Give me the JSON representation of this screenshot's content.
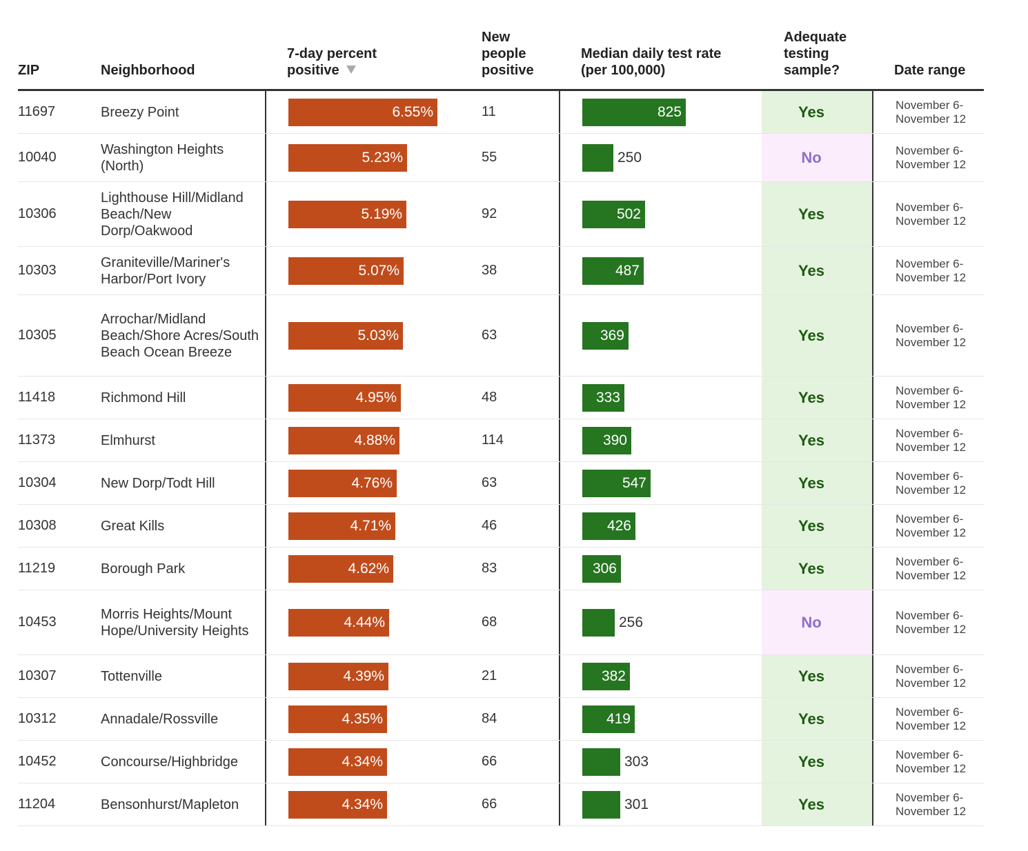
{
  "headers": {
    "zip": "ZIP",
    "neighborhood": "Neighborhood",
    "percent_positive": "7-day percent positive",
    "new_people_positive": "New people positive",
    "test_rate": "Median daily test rate (per 100,000)",
    "adequate_sample": "Adequate testing sample?",
    "date_range": "Date range"
  },
  "icons": {
    "sort": "sort-descending-icon"
  },
  "colors": {
    "percent_bar": "#c04c1c",
    "rate_bar": "#267521",
    "yes_bg": "#e4f3de",
    "yes_text": "#1e5a12",
    "no_bg": "#fcedfd",
    "no_text": "#8f6fc4"
  },
  "rows": [
    {
      "zip": "11697",
      "neighborhood": "Breezy Point",
      "percent": 6.55,
      "percent_label": "6.55%",
      "new_positive": "11",
      "rate": 825,
      "rate_label": "825",
      "adequate": "Yes",
      "date_start": "November 6-",
      "date_end": "November 12"
    },
    {
      "zip": "10040",
      "neighborhood": "Washington Heights (North)",
      "percent": 5.23,
      "percent_label": "5.23%",
      "new_positive": "55",
      "rate": 250,
      "rate_label": "250",
      "adequate": "No",
      "date_start": "November 6-",
      "date_end": "November 12"
    },
    {
      "zip": "10306",
      "neighborhood": "Lighthouse Hill/Midland Beach/New Dorp/Oakwood",
      "percent": 5.19,
      "percent_label": "5.19%",
      "new_positive": "92",
      "rate": 502,
      "rate_label": "502",
      "adequate": "Yes",
      "date_start": "November 6-",
      "date_end": "November 12"
    },
    {
      "zip": "10303",
      "neighborhood": "Graniteville/Mariner's Harbor/Port Ivory",
      "percent": 5.07,
      "percent_label": "5.07%",
      "new_positive": "38",
      "rate": 487,
      "rate_label": "487",
      "adequate": "Yes",
      "date_start": "November 6-",
      "date_end": "November 12"
    },
    {
      "zip": "10305",
      "neighborhood": "Arrochar/Midland Beach/Shore Acres/South Beach Ocean Breeze",
      "percent": 5.03,
      "percent_label": "5.03%",
      "new_positive": "63",
      "rate": 369,
      "rate_label": "369",
      "adequate": "Yes",
      "date_start": "November 6-",
      "date_end": "November 12"
    },
    {
      "zip": "11418",
      "neighborhood": "Richmond Hill",
      "percent": 4.95,
      "percent_label": "4.95%",
      "new_positive": "48",
      "rate": 333,
      "rate_label": "333",
      "adequate": "Yes",
      "date_start": "November 6-",
      "date_end": "November 12"
    },
    {
      "zip": "11373",
      "neighborhood": "Elmhurst",
      "percent": 4.88,
      "percent_label": "4.88%",
      "new_positive": "114",
      "rate": 390,
      "rate_label": "390",
      "adequate": "Yes",
      "date_start": "November 6-",
      "date_end": "November 12"
    },
    {
      "zip": "10304",
      "neighborhood": "New Dorp/Todt Hill",
      "percent": 4.76,
      "percent_label": "4.76%",
      "new_positive": "63",
      "rate": 547,
      "rate_label": "547",
      "adequate": "Yes",
      "date_start": "November 6-",
      "date_end": "November 12"
    },
    {
      "zip": "10308",
      "neighborhood": "Great Kills",
      "percent": 4.71,
      "percent_label": "4.71%",
      "new_positive": "46",
      "rate": 426,
      "rate_label": "426",
      "adequate": "Yes",
      "date_start": "November 6-",
      "date_end": "November 12"
    },
    {
      "zip": "11219",
      "neighborhood": "Borough Park",
      "percent": 4.62,
      "percent_label": "4.62%",
      "new_positive": "83",
      "rate": 306,
      "rate_label": "306",
      "adequate": "Yes",
      "date_start": "November 6-",
      "date_end": "November 12"
    },
    {
      "zip": "10453",
      "neighborhood": "Morris Heights/Mount Hope/University Heights",
      "percent": 4.44,
      "percent_label": "4.44%",
      "new_positive": "68",
      "rate": 256,
      "rate_label": "256",
      "adequate": "No",
      "date_start": "November 6-",
      "date_end": "November 12"
    },
    {
      "zip": "10307",
      "neighborhood": "Tottenville",
      "percent": 4.39,
      "percent_label": "4.39%",
      "new_positive": "21",
      "rate": 382,
      "rate_label": "382",
      "adequate": "Yes",
      "date_start": "November 6-",
      "date_end": "November 12"
    },
    {
      "zip": "10312",
      "neighborhood": "Annadale/Rossville",
      "percent": 4.35,
      "percent_label": "4.35%",
      "new_positive": "84",
      "rate": 419,
      "rate_label": "419",
      "adequate": "Yes",
      "date_start": "November 6-",
      "date_end": "November 12"
    },
    {
      "zip": "10452",
      "neighborhood": "Concourse/Highbridge",
      "percent": 4.34,
      "percent_label": "4.34%",
      "new_positive": "66",
      "rate": 303,
      "rate_label": "303",
      "adequate": "Yes",
      "date_start": "November 6-",
      "date_end": "November 12"
    },
    {
      "zip": "11204",
      "neighborhood": "Bensonhurst/Mapleton",
      "percent": 4.34,
      "percent_label": "4.34%",
      "new_positive": "66",
      "rate": 301,
      "rate_label": "301",
      "adequate": "Yes",
      "date_start": "November 6-",
      "date_end": "November 12"
    }
  ]
}
